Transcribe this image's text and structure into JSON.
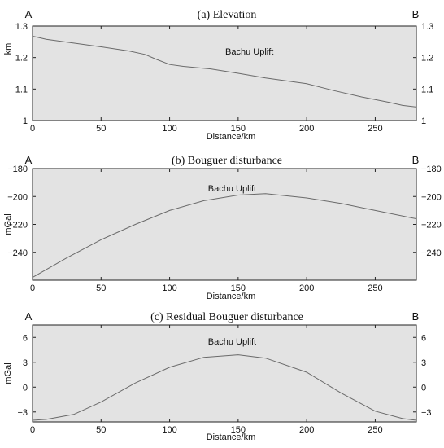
{
  "chart_data": [
    {
      "type": "line",
      "title": "(a) Elevation",
      "left_label": "A",
      "right_label": "B",
      "annotation": "Bachu Uplift",
      "xlabel": "Distance/km",
      "ylabel": "km",
      "xlim": [
        0,
        280
      ],
      "ylim": [
        1.0,
        1.3
      ],
      "xticks": [
        0,
        50,
        100,
        150,
        200,
        250
      ],
      "yticks": [
        1,
        1.1,
        1.2,
        1.3
      ],
      "ytick_labels": [
        "1",
        "1.1",
        "1.2",
        "1.3"
      ],
      "grid": false,
      "x": [
        0,
        10,
        30,
        50,
        70,
        82,
        90,
        100,
        110,
        130,
        150,
        170,
        200,
        220,
        240,
        260,
        270,
        280
      ],
      "y": [
        1.268,
        1.258,
        1.246,
        1.234,
        1.221,
        1.21,
        1.195,
        1.178,
        1.172,
        1.164,
        1.15,
        1.135,
        1.117,
        1.095,
        1.075,
        1.058,
        1.048,
        1.043
      ]
    },
    {
      "type": "line",
      "title": "(b) Bouguer disturbance",
      "left_label": "A",
      "right_label": "B",
      "annotation": "Bachu Uplift",
      "xlabel": "Distance/km",
      "ylabel": "mGal",
      "xlim": [
        0,
        280
      ],
      "ylim": [
        -260,
        -180
      ],
      "xticks": [
        0,
        50,
        100,
        150,
        200,
        250
      ],
      "yticks": [
        -240,
        -220,
        -200,
        -180
      ],
      "ytick_labels": [
        "-240",
        "-220",
        "-200",
        "-180"
      ],
      "grid": false,
      "x": [
        0,
        25,
        50,
        75,
        100,
        125,
        150,
        170,
        200,
        225,
        250,
        280
      ],
      "y": [
        -258,
        -244,
        -231,
        -220,
        -210,
        -203,
        -199,
        -198,
        -201,
        -205,
        -210,
        -216
      ]
    },
    {
      "type": "line",
      "title": "(c) Residual Bouguer disturbance",
      "left_label": "A",
      "right_label": "B",
      "annotation": "Bachu Uplift",
      "xlabel": "Distance/km",
      "ylabel": "mGal",
      "xlim": [
        0,
        280
      ],
      "ylim": [
        -4.2,
        7.5
      ],
      "xticks": [
        0,
        50,
        100,
        150,
        200,
        250
      ],
      "yticks": [
        -3,
        0,
        3,
        6
      ],
      "ytick_labels": [
        "-3",
        "0",
        "3",
        "6"
      ],
      "grid": false,
      "x": [
        0,
        10,
        30,
        50,
        75,
        100,
        125,
        150,
        170,
        200,
        225,
        250,
        270,
        280
      ],
      "y": [
        -4.0,
        -3.9,
        -3.3,
        -1.8,
        0.5,
        2.4,
        3.6,
        3.9,
        3.5,
        1.8,
        -0.7,
        -2.9,
        -3.8,
        -4.0
      ]
    }
  ],
  "colors": {
    "panel_background": "#e3e3e3",
    "line": "#6a6a6a",
    "frame": "#222222"
  }
}
